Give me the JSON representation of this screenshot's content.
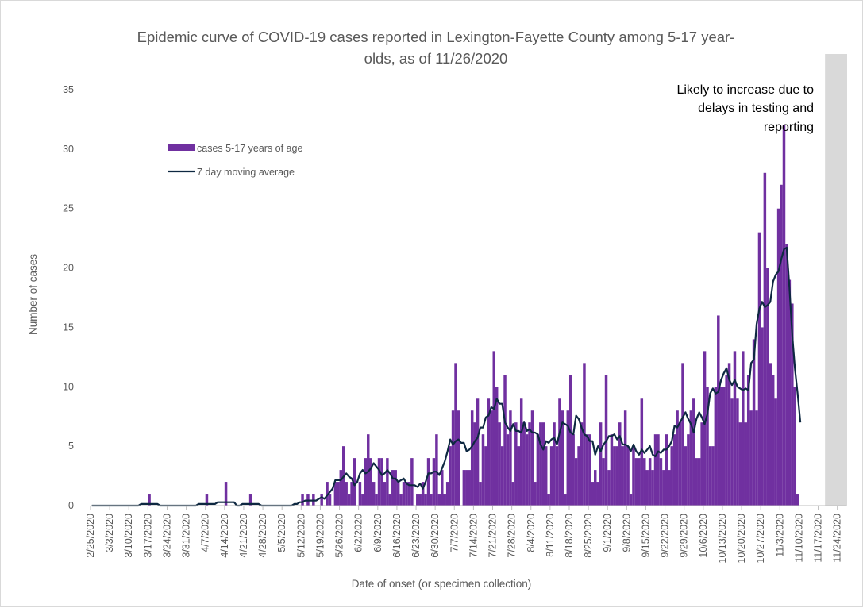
{
  "chart_data": {
    "type": "bar",
    "title_lines": [
      "Epidemic curve of COVID-19 cases reported in Lexington-Fayette County among 5-17 year-",
      "olds, as of 11/26/2020"
    ],
    "xlabel": "Date of onset (or specimen collection)",
    "ylabel": "Number of cases",
    "ylim": [
      0,
      35
    ],
    "yticks": [
      0,
      5,
      10,
      15,
      20,
      25,
      30,
      35
    ],
    "x_start": "2/25/2020",
    "x_end": "11/26/2020",
    "xtick_labels": [
      "2/25/2020",
      "3/3/2020",
      "3/10/2020",
      "3/17/2020",
      "3/24/2020",
      "3/31/2020",
      "4/7/2020",
      "4/14/2020",
      "4/21/2020",
      "4/28/2020",
      "5/5/2020",
      "5/12/2020",
      "5/19/2020",
      "5/26/2020",
      "6/2/2020",
      "6/9/2020",
      "6/16/2020",
      "6/23/2020",
      "6/30/2020",
      "7/7/2020",
      "7/14/2020",
      "7/21/2020",
      "7/28/2020",
      "8/4/2020",
      "8/11/2020",
      "8/18/2020",
      "8/25/2020",
      "9/1/2020",
      "9/8/2020",
      "9/15/2020",
      "9/22/2020",
      "9/29/2020",
      "10/6/2020",
      "10/13/2020",
      "10/20/2020",
      "10/27/2020",
      "11/3/2020",
      "11/10/2020",
      "11/17/2020",
      "11/24/2020"
    ],
    "series": [
      {
        "name": "cases 5-17 years of age",
        "kind": "bar",
        "color": "#7030a0",
        "values": [
          0,
          0,
          0,
          0,
          0,
          0,
          0,
          0,
          0,
          0,
          0,
          0,
          0,
          0,
          0,
          0,
          0,
          0,
          0,
          0,
          0,
          1,
          0,
          0,
          0,
          0,
          0,
          0,
          0,
          0,
          0,
          0,
          0,
          0,
          0,
          0,
          0,
          0,
          0,
          0,
          0,
          0,
          1,
          0,
          0,
          0,
          0,
          0,
          0,
          2,
          0,
          0,
          0,
          0,
          0,
          0,
          0,
          0,
          1,
          0,
          0,
          0,
          0,
          0,
          0,
          0,
          0,
          0,
          0,
          0,
          0,
          0,
          0,
          0,
          0,
          0,
          0,
          1,
          0,
          1,
          0,
          1,
          0,
          0,
          1,
          0,
          2,
          1,
          0,
          2,
          2,
          3,
          5,
          2,
          1,
          2,
          4,
          0,
          2,
          1,
          4,
          6,
          4,
          2,
          1,
          4,
          4,
          2,
          4,
          1,
          3,
          3,
          2,
          1,
          2,
          2,
          2,
          4,
          0,
          1,
          1,
          2,
          1,
          4,
          1,
          4,
          6,
          1,
          3,
          1,
          2,
          5,
          8,
          12,
          8,
          0,
          3,
          3,
          3,
          8,
          7,
          9,
          2,
          6,
          5,
          9,
          8,
          13,
          10,
          7,
          5,
          11,
          6,
          8,
          2,
          7,
          5,
          9,
          7,
          6,
          7,
          8,
          2,
          6,
          7,
          7,
          5,
          1,
          5,
          7,
          5,
          9,
          8,
          1,
          8,
          11,
          6,
          4,
          5,
          7,
          12,
          6,
          6,
          2,
          3,
          2,
          7,
          4,
          11,
          3,
          6,
          5,
          5,
          7,
          5,
          8,
          5,
          1,
          5,
          4,
          4,
          9,
          4,
          3,
          4,
          3,
          6,
          6,
          4,
          3,
          6,
          3,
          5,
          6,
          8,
          7,
          12,
          5,
          6,
          8,
          9,
          4,
          4,
          7,
          13,
          10,
          5,
          5,
          10,
          16,
          10,
          10,
          11,
          12,
          9,
          13,
          9,
          7,
          13,
          7,
          11,
          8,
          14,
          8,
          23,
          15,
          28,
          20,
          12,
          11,
          9,
          25,
          27,
          32,
          22,
          19,
          17,
          10,
          1,
          0
        ],
        "shaded_label": "Likely to increase due to delays in testing and reporting",
        "shaded_from": "11/19/2020",
        "shaded_to": "11/26/2020"
      },
      {
        "name": "7 day moving average",
        "kind": "line",
        "color": "#0e2841"
      }
    ],
    "legend_placement": "upper-left inside plot",
    "annotation": [
      "Likely to increase due to",
      "delays in testing and",
      "reporting"
    ],
    "grid": false,
    "colors": {
      "bar": "#7030a0",
      "bar_shaded": "#7b5aa6",
      "line": "#0e2841",
      "shade": "#d9d9d9",
      "text": "#595959"
    }
  }
}
